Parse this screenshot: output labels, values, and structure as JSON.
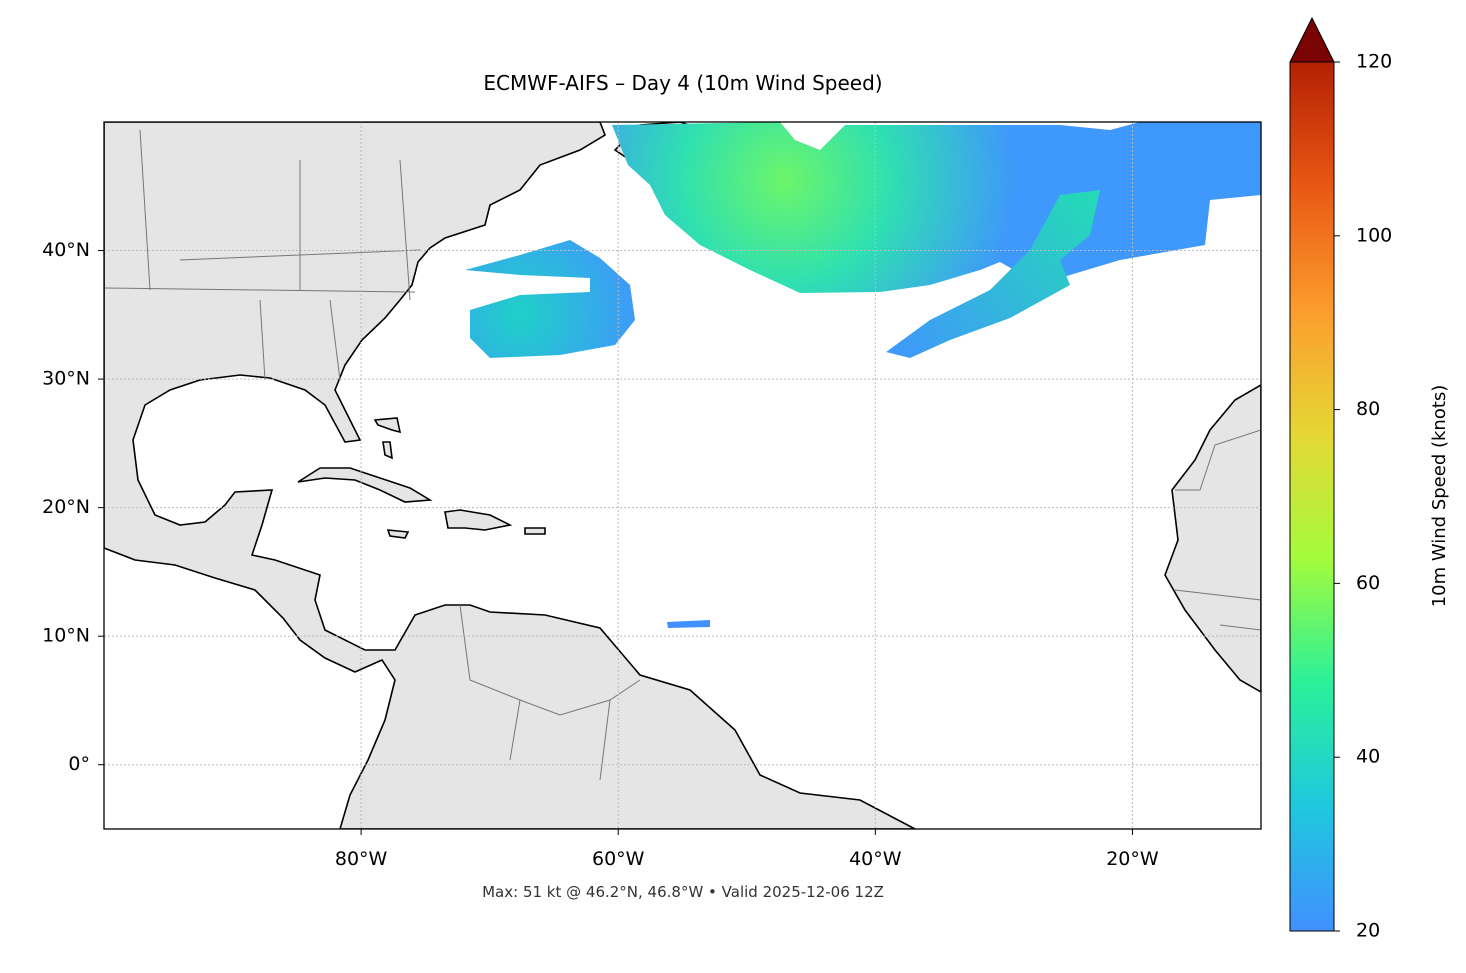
{
  "chart_data": {
    "type": "map",
    "title": "ECMWF-AIFS – Day 4 (10m Wind Speed)",
    "footer": "Max: 51 kt @ 46.2°N, 46.8°W • Valid 2025-12-06 12Z",
    "xlim": [
      -100,
      -10
    ],
    "ylim": [
      -5,
      50
    ],
    "xticks": [
      {
        "value": -80,
        "label": "80°W"
      },
      {
        "value": -60,
        "label": "60°W"
      },
      {
        "value": -40,
        "label": "40°W"
      },
      {
        "value": -20,
        "label": "20°W"
      }
    ],
    "yticks": [
      {
        "value": 0,
        "label": "0°"
      },
      {
        "value": 10,
        "label": "10°N"
      },
      {
        "value": 20,
        "label": "20°N"
      },
      {
        "value": 30,
        "label": "30°N"
      },
      {
        "value": 40,
        "label": "40°N"
      }
    ],
    "grid": true,
    "colorbar": {
      "label": "10m Wind Speed (knots)",
      "lim": [
        20,
        120
      ],
      "ticks": [
        20,
        40,
        60,
        80,
        100,
        120
      ],
      "colors": [
        "#4090ff",
        "#1fc8de",
        "#2af09a",
        "#a4fb3c",
        "#e5d735",
        "#fc9d2d",
        "#e95714",
        "#b52003",
        "#7a0403"
      ]
    }
  }
}
